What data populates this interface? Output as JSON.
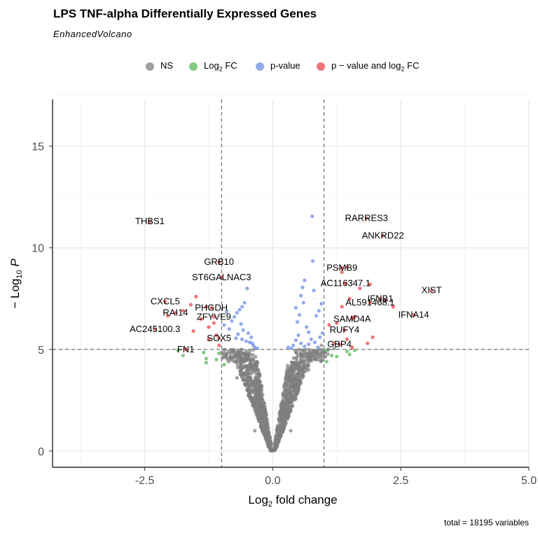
{
  "chart_data": {
    "type": "scatter",
    "title": "LPS TNF-alpha Differentially Expressed Genes",
    "subtitle": "EnhancedVolcano",
    "xlabel": "Log2 fold change",
    "ylabel": "−Log10 P",
    "xlim": [
      -4.3,
      5.0
    ],
    "ylim": [
      -0.8,
      17.3
    ],
    "x_ticks": [
      -2.5,
      0.0,
      2.5,
      5.0
    ],
    "x_tick_labels": [
      "-2.5",
      "0.0",
      "2.5",
      "5.0"
    ],
    "y_ticks": [
      0,
      5,
      10,
      15
    ],
    "y_tick_labels": [
      "0",
      "5",
      "10",
      "15"
    ],
    "grid": true,
    "legend_position": "top",
    "fc_cutoff": 1.0,
    "p_cutoff_log10": 5.0,
    "legend": [
      {
        "key": "NS",
        "label": "NS",
        "color": "#7f7f7f"
      },
      {
        "key": "FC",
        "label": "Log2 FC",
        "color": "#5cb85c"
      },
      {
        "key": "P",
        "label": "p-value",
        "color": "#6f8fe6"
      },
      {
        "key": "PFC",
        "label": "p − value and log2 FC",
        "color": "#e8474d"
      }
    ],
    "labeled_genes": [
      {
        "gene": "THBS1",
        "x": -2.4,
        "y": 11.3
      },
      {
        "gene": "RARRES3",
        "x": 1.83,
        "y": 11.45
      },
      {
        "gene": "ANKRD22",
        "x": 2.15,
        "y": 10.6
      },
      {
        "gene": "GRB10",
        "x": -1.05,
        "y": 9.3
      },
      {
        "gene": "PSMB9",
        "x": 1.35,
        "y": 9.0
      },
      {
        "gene": "ST6GALNAC3",
        "x": -1.0,
        "y": 8.55
      },
      {
        "gene": "AC116347.1",
        "x": 1.42,
        "y": 8.25
      },
      {
        "gene": "XIST",
        "x": 3.1,
        "y": 7.9
      },
      {
        "gene": "IFNB1",
        "x": 2.1,
        "y": 7.5
      },
      {
        "gene": "CXCL5",
        "x": -2.1,
        "y": 7.35
      },
      {
        "gene": "AL591468.1",
        "x": 1.9,
        "y": 7.3
      },
      {
        "gene": "PHGDH",
        "x": -1.2,
        "y": 7.05
      },
      {
        "gene": "RAI14",
        "x": -1.9,
        "y": 6.8
      },
      {
        "gene": "ZFYVE9",
        "x": -1.15,
        "y": 6.6
      },
      {
        "gene": "IFNA14",
        "x": 2.75,
        "y": 6.7
      },
      {
        "gene": "SAMD4A",
        "x": 1.55,
        "y": 6.5
      },
      {
        "gene": "AC245100.3",
        "x": -2.3,
        "y": 6.0
      },
      {
        "gene": "RUFY4",
        "x": 1.4,
        "y": 5.95
      },
      {
        "gene": "SOX5",
        "x": -1.05,
        "y": 5.55
      },
      {
        "gene": "GBP4",
        "x": 1.3,
        "y": 5.25
      },
      {
        "gene": "FN1",
        "x": -1.7,
        "y": 5.0
      }
    ],
    "extra_points": {
      "pvalue": [
        [
          0.77,
          11.55
        ],
        [
          0.78,
          9.35
        ],
        [
          0.62,
          8.4
        ],
        [
          0.58,
          8.05
        ],
        [
          0.55,
          7.65
        ],
        [
          0.6,
          7.3
        ],
        [
          0.45,
          7.05
        ],
        [
          0.52,
          6.7
        ],
        [
          0.48,
          6.35
        ],
        [
          0.66,
          6.1
        ],
        [
          0.7,
          5.85
        ],
        [
          0.85,
          6.65
        ],
        [
          0.9,
          6.9
        ],
        [
          0.95,
          7.25
        ],
        [
          0.8,
          7.9
        ],
        [
          -0.5,
          8.0
        ],
        [
          -0.55,
          7.3
        ],
        [
          -0.6,
          7.1
        ],
        [
          -0.65,
          6.95
        ],
        [
          -0.7,
          6.8
        ],
        [
          -0.75,
          6.6
        ],
        [
          -0.8,
          6.4
        ],
        [
          -0.62,
          6.25
        ],
        [
          -0.9,
          6.85
        ],
        [
          -0.95,
          6.2
        ],
        [
          -0.85,
          6.0
        ],
        [
          -0.58,
          5.95
        ],
        [
          -0.68,
          5.75
        ],
        [
          -0.72,
          5.55
        ],
        [
          -0.6,
          5.5
        ],
        [
          -0.52,
          5.4
        ],
        [
          -0.45,
          5.35
        ],
        [
          -0.4,
          5.3
        ],
        [
          -0.38,
          5.2
        ],
        [
          -0.35,
          5.1
        ],
        [
          -0.42,
          5.6
        ],
        [
          -0.48,
          5.8
        ],
        [
          0.4,
          5.2
        ],
        [
          0.45,
          5.45
        ],
        [
          0.5,
          5.7
        ],
        [
          0.55,
          5.3
        ],
        [
          0.62,
          5.15
        ],
        [
          0.7,
          5.25
        ],
        [
          0.75,
          5.5
        ],
        [
          0.82,
          5.35
        ],
        [
          0.88,
          5.1
        ],
        [
          0.92,
          5.6
        ],
        [
          0.97,
          5.8
        ],
        [
          0.36,
          5.05
        ],
        [
          0.3,
          5.1
        ],
        [
          -0.3,
          5.05
        ]
      ],
      "fc": [
        [
          -1.85,
          4.95
        ],
        [
          -1.75,
          4.7
        ],
        [
          -1.35,
          4.85
        ],
        [
          -1.3,
          4.55
        ],
        [
          -1.3,
          4.35
        ],
        [
          -1.05,
          4.8
        ],
        [
          -1.1,
          4.5
        ],
        [
          -0.95,
          4.25
        ],
        [
          1.05,
          4.95
        ],
        [
          1.15,
          4.7
        ],
        [
          1.25,
          4.65
        ],
        [
          1.45,
          4.9
        ],
        [
          1.5,
          4.75
        ],
        [
          1.6,
          4.95
        ],
        [
          1.05,
          4.4
        ]
      ],
      "pfc": [
        [
          -1.5,
          7.6
        ],
        [
          -1.6,
          7.2
        ],
        [
          -1.3,
          7.1
        ],
        [
          -1.75,
          6.9
        ],
        [
          -2.05,
          6.65
        ],
        [
          -1.4,
          6.5
        ],
        [
          -1.15,
          6.3
        ],
        [
          -1.25,
          6.1
        ],
        [
          -1.55,
          5.9
        ],
        [
          -1.1,
          5.7
        ],
        [
          -1.25,
          5.5
        ],
        [
          -1.05,
          5.2
        ],
        [
          1.1,
          6.2
        ],
        [
          1.25,
          6.3
        ],
        [
          1.6,
          6.6
        ],
        [
          1.35,
          7.1
        ],
        [
          1.5,
          7.5
        ],
        [
          1.7,
          8.0
        ],
        [
          1.9,
          8.2
        ],
        [
          2.35,
          7.1
        ],
        [
          2.2,
          7.4
        ],
        [
          1.85,
          5.3
        ],
        [
          1.95,
          5.6
        ],
        [
          1.45,
          5.5
        ],
        [
          1.2,
          5.3
        ],
        [
          1.55,
          5.1
        ],
        [
          1.35,
          8.8
        ],
        [
          1.45,
          9.05
        ]
      ]
    }
  },
  "footer": "total = 18195 variables"
}
